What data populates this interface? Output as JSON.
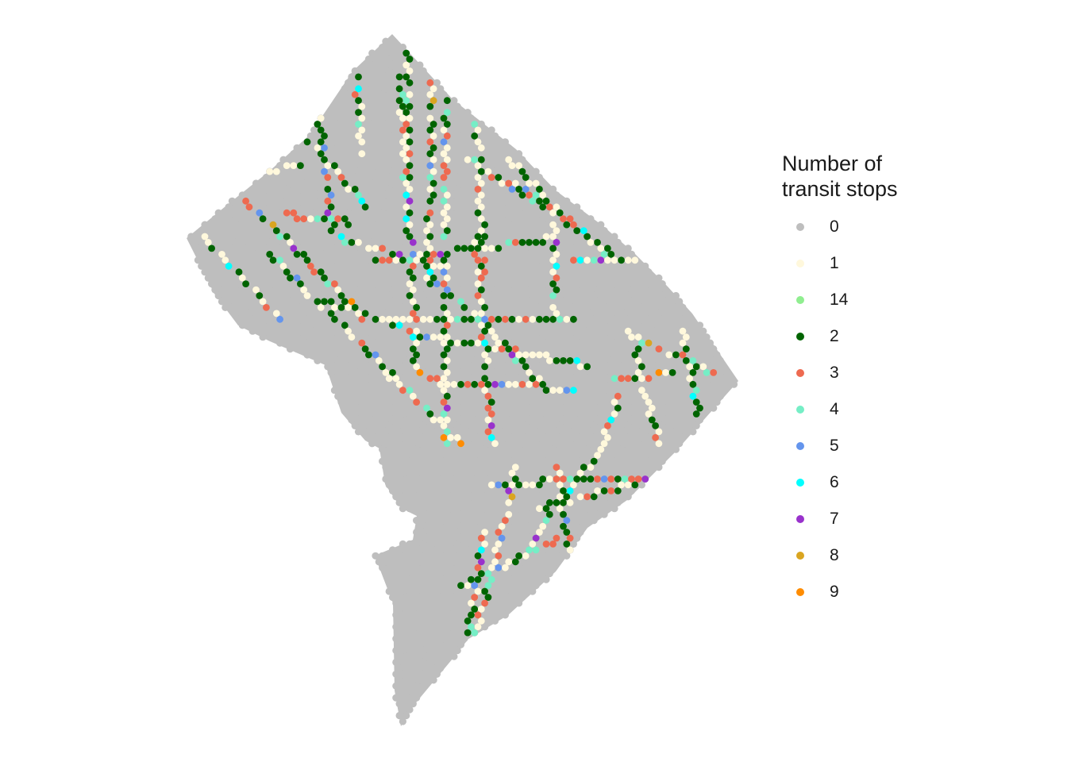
{
  "legend": {
    "title": "Number of\ntransit stops",
    "entries": [
      {
        "label": "0",
        "color": "#bebebe"
      },
      {
        "label": "1",
        "color": "#fff8dc"
      },
      {
        "label": "14",
        "color": "#90ee90"
      },
      {
        "label": "2",
        "color": "#006400"
      },
      {
        "label": "3",
        "color": "#ee6a50"
      },
      {
        "label": "4",
        "color": "#76eec6"
      },
      {
        "label": "5",
        "color": "#6495ed"
      },
      {
        "label": "6",
        "color": "#00ffff"
      },
      {
        "label": "7",
        "color": "#9932cc"
      },
      {
        "label": "8",
        "color": "#daa520"
      },
      {
        "label": "9",
        "color": "#ff8c00"
      }
    ]
  }
}
